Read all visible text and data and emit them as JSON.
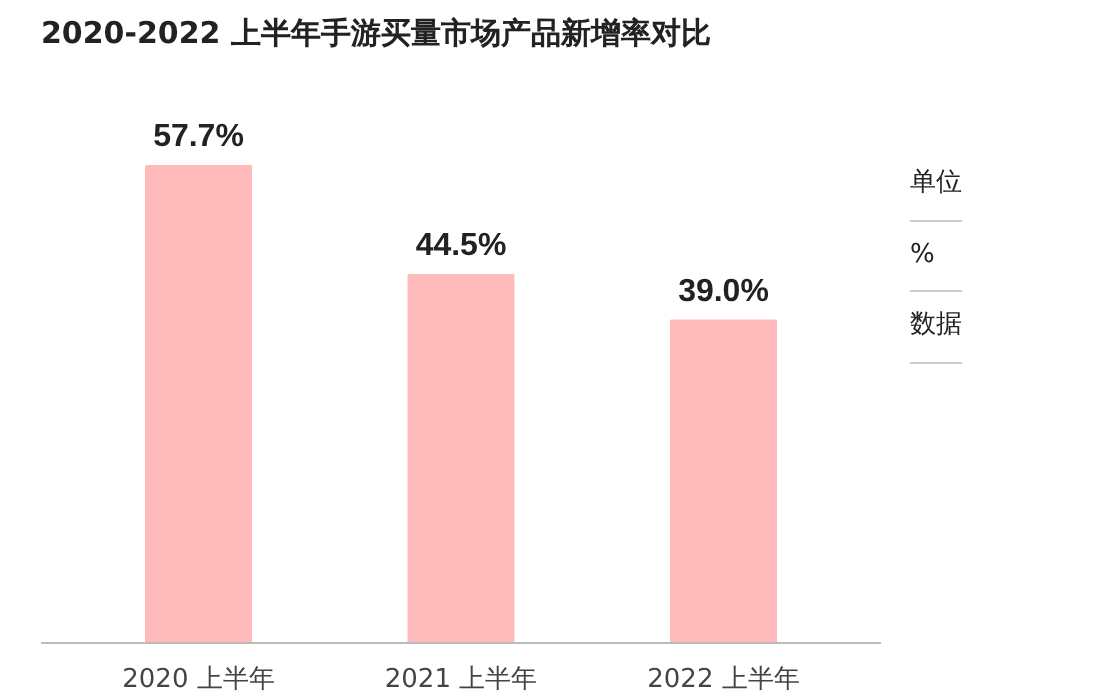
{
  "chart_data": {
    "type": "bar",
    "title": "2020-2022 上半年手游买量市场产品新增率对比",
    "categories": [
      "2020 上半年",
      "2021 上半年",
      "2022 上半年"
    ],
    "values": [
      57.7,
      44.5,
      39.0
    ],
    "value_labels": [
      "57.7%",
      "44.5%",
      "39.0%"
    ],
    "color": "#ffbbbb",
    "annotations": [
      "单位",
      "%",
      "数据"
    ],
    "grid": false
  }
}
